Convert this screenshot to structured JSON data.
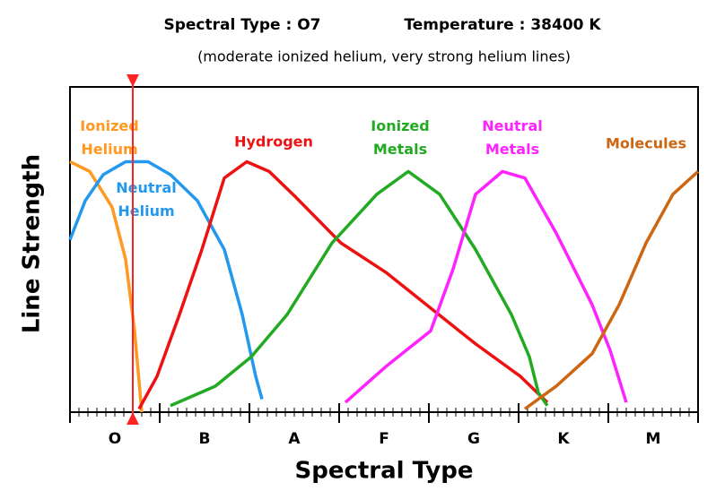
{
  "chart_data": {
    "type": "line",
    "title": "Spectral Type : O7",
    "title2": "Temperature : 38400 K",
    "subtitle": "(moderate ionized helium, very strong helium lines)",
    "x_label": "Spectral Type",
    "y_label": "Line Strength",
    "xlim": [
      0,
      7
    ],
    "ylim": [
      0,
      100
    ],
    "xticks": [
      {
        "value": 0.5,
        "label": "O"
      },
      {
        "value": 1.5,
        "label": "B"
      },
      {
        "value": 2.5,
        "label": "A"
      },
      {
        "value": 3.5,
        "label": "F"
      },
      {
        "value": 4.5,
        "label": "G"
      },
      {
        "value": 5.5,
        "label": "K"
      },
      {
        "value": 6.5,
        "label": "M"
      }
    ],
    "marker": 0.7,
    "marker_color": "#ff2222",
    "series": [
      {
        "name": "Ionized Helium",
        "color": "#ff9922",
        "x": [
          0,
          0.22,
          0.47,
          0.62,
          0.72,
          0.8
        ],
        "values": [
          77,
          74,
          63,
          47,
          25,
          0
        ]
      },
      {
        "name": "Neutral Helium",
        "color": "#2299ee",
        "x": [
          0,
          0.17,
          0.37,
          0.62,
          0.87,
          1.12,
          1.42,
          1.72,
          1.92,
          2.07,
          2.14
        ],
        "values": [
          53,
          65,
          73,
          77,
          77,
          73,
          65,
          50,
          30,
          11,
          4
        ]
      },
      {
        "name": "Hydrogen",
        "color": "#ee1111",
        "x": [
          0.77,
          0.97,
          1.22,
          1.47,
          1.72,
          1.97,
          2.22,
          2.52,
          3.02,
          3.52,
          4.02,
          4.52,
          5.02,
          5.32
        ],
        "values": [
          1,
          11,
          30,
          50,
          72,
          77,
          74,
          66,
          52,
          43,
          32,
          21,
          11,
          3
        ]
      },
      {
        "name": "Ionized Metals",
        "color": "#22aa22",
        "x": [
          1.12,
          1.62,
          2.02,
          2.42,
          2.92,
          3.42,
          3.77,
          4.12,
          4.52,
          4.92,
          5.12,
          5.22,
          5.32
        ],
        "values": [
          2,
          8,
          17,
          30,
          52,
          67,
          74,
          67,
          50,
          30,
          17,
          6,
          2
        ]
      },
      {
        "name": "Neutral Metals",
        "color": "#ff22ff",
        "x": [
          3.07,
          3.52,
          4.02,
          4.27,
          4.52,
          4.82,
          5.07,
          5.42,
          5.82,
          6.02,
          6.2
        ],
        "values": [
          3,
          14,
          25,
          44,
          67,
          74,
          72,
          55,
          33,
          19,
          3
        ]
      },
      {
        "name": "Molecules",
        "color": "#cc6611",
        "x": [
          5.07,
          5.42,
          5.82,
          6.12,
          6.42,
          6.72,
          7.0
        ],
        "values": [
          1,
          8,
          18,
          33,
          52,
          67,
          74
        ]
      }
    ]
  }
}
